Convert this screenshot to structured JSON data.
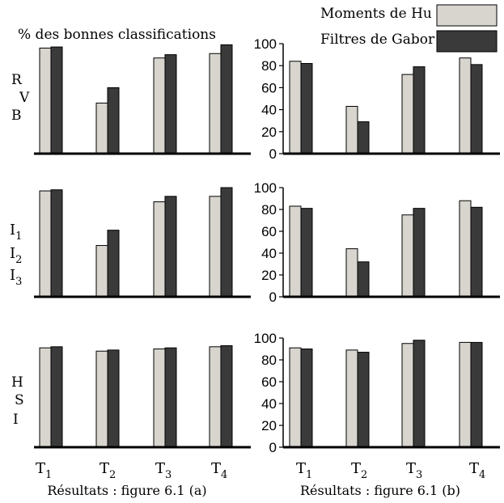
{
  "colors": {
    "hu": "#d8d5cf",
    "gabor": "#3a3a3a",
    "axis": "#000000"
  },
  "legend": [
    {
      "label": "Moments de Hu",
      "color_key": "hu"
    },
    {
      "label": "Filtres de Gabor",
      "color_key": "gabor"
    }
  ],
  "ylabel_left": "% des bonnes classifications",
  "row_labels": [
    [
      "R",
      "V",
      "B"
    ],
    [
      "I1",
      "I2",
      "I3"
    ],
    [
      "H",
      "S",
      "I"
    ]
  ],
  "x_categories": [
    {
      "base": "T",
      "sub": "1"
    },
    {
      "base": "T",
      "sub": "2"
    },
    {
      "base": "T",
      "sub": "3"
    },
    {
      "base": "T",
      "sub": "4"
    }
  ],
  "captions": [
    "Résultats : figure 6.1 (a)",
    "Résultats : figure 6.1 (b)"
  ],
  "y_ticks": [
    "0",
    "20",
    "40",
    "60",
    "80",
    "100"
  ],
  "chart_data": [
    {
      "type": "bar",
      "panel": "a",
      "row": "RVB",
      "categories": [
        "T1",
        "T2",
        "T3",
        "T4"
      ],
      "ylim": [
        0,
        100
      ],
      "axis_shown": false,
      "series": [
        {
          "name": "Moments de Hu",
          "values": [
            96,
            46,
            87,
            91
          ]
        },
        {
          "name": "Filtres de Gabor",
          "values": [
            97,
            60,
            90,
            99
          ]
        }
      ]
    },
    {
      "type": "bar",
      "panel": "b",
      "row": "RVB",
      "categories": [
        "T1",
        "T2",
        "T3",
        "T4"
      ],
      "ylim": [
        0,
        100
      ],
      "series": [
        {
          "name": "Moments de Hu",
          "values": [
            84,
            43,
            72,
            87
          ]
        },
        {
          "name": "Filtres de Gabor",
          "values": [
            82,
            29,
            79,
            81
          ]
        }
      ]
    },
    {
      "type": "bar",
      "panel": "a",
      "row": "I1I2I3",
      "categories": [
        "T1",
        "T2",
        "T3",
        "T4"
      ],
      "ylim": [
        0,
        100
      ],
      "axis_shown": false,
      "series": [
        {
          "name": "Moments de Hu",
          "values": [
            97,
            47,
            87,
            92
          ]
        },
        {
          "name": "Filtres de Gabor",
          "values": [
            98,
            61,
            92,
            100
          ]
        }
      ]
    },
    {
      "type": "bar",
      "panel": "b",
      "row": "I1I2I3",
      "categories": [
        "T1",
        "T2",
        "T3",
        "T4"
      ],
      "ylim": [
        0,
        100
      ],
      "series": [
        {
          "name": "Moments de Hu",
          "values": [
            83,
            44,
            75,
            88
          ]
        },
        {
          "name": "Filtres de Gabor",
          "values": [
            81,
            32,
            81,
            82
          ]
        }
      ]
    },
    {
      "type": "bar",
      "panel": "a",
      "row": "HSI",
      "categories": [
        "T1",
        "T2",
        "T3",
        "T4"
      ],
      "ylim": [
        0,
        100
      ],
      "axis_shown": false,
      "series": [
        {
          "name": "Moments de Hu",
          "values": [
            91,
            88,
            90,
            92
          ]
        },
        {
          "name": "Filtres de Gabor",
          "values": [
            92,
            89,
            91,
            93
          ]
        }
      ]
    },
    {
      "type": "bar",
      "panel": "b",
      "row": "HSI",
      "categories": [
        "T1",
        "T2",
        "T3",
        "T4"
      ],
      "ylim": [
        0,
        100
      ],
      "series": [
        {
          "name": "Moments de Hu",
          "values": [
            91,
            89,
            95,
            96
          ]
        },
        {
          "name": "Filtres de Gabor",
          "values": [
            90,
            87,
            98,
            96
          ]
        }
      ]
    }
  ]
}
